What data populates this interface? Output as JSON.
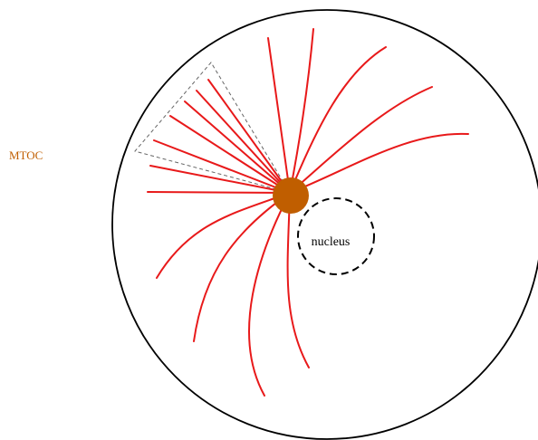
{
  "labels": {
    "mtoc": "MTOC",
    "nucleus": "nucleus"
  },
  "colors": {
    "background": "#ffffff",
    "cell_outline": "#000000",
    "microtubule": "#e8191a",
    "mtoc": "#c05e00",
    "mtoc_label": "#c05e00",
    "nucleus_outline": "#000000",
    "wedge_outline": "#666666"
  }
}
